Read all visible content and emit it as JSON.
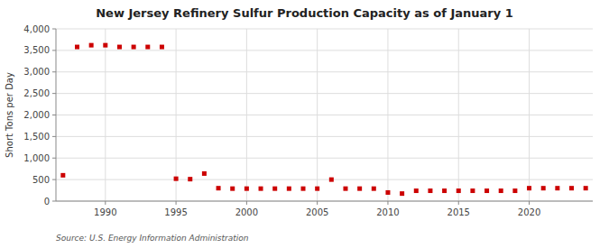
{
  "chart_data": {
    "type": "scatter",
    "title": "New Jersey Refinery Sulfur Production Capacity as of January 1",
    "ylabel": "Short Tons per Day",
    "source": "Source: U.S. Energy Information Administration",
    "color": "#cc0000",
    "marker": "square",
    "grid": true,
    "xlim": [
      1986.5,
      2024.5
    ],
    "xticks": [
      1990,
      1995,
      2000,
      2005,
      2010,
      2015,
      2020
    ],
    "ylim": [
      0,
      4000
    ],
    "yticks": [
      0,
      500,
      {
        "value": 1000,
        "label": "1,000"
      },
      {
        "value": 1500,
        "label": "1,500"
      },
      {
        "value": 2000,
        "label": "2,000"
      },
      {
        "value": 2500,
        "label": "2,500"
      },
      {
        "value": 3000,
        "label": "3,000"
      },
      {
        "value": 3500,
        "label": "3,500"
      },
      {
        "value": 4000,
        "label": "4,000"
      }
    ],
    "x": [
      1987,
      1988,
      1989,
      1990,
      1991,
      1992,
      1993,
      1994,
      1995,
      1996,
      1997,
      1998,
      1999,
      2000,
      2001,
      2002,
      2003,
      2004,
      2005,
      2006,
      2007,
      2008,
      2009,
      2010,
      2011,
      2012,
      2013,
      2014,
      2015,
      2016,
      2017,
      2018,
      2019,
      2020,
      2021,
      2022,
      2023,
      2024
    ],
    "values": [
      600,
      3580,
      3620,
      3620,
      3580,
      3580,
      3580,
      3580,
      520,
      510,
      640,
      300,
      290,
      290,
      290,
      290,
      290,
      290,
      290,
      500,
      290,
      290,
      290,
      200,
      175,
      240,
      240,
      240,
      240,
      240,
      240,
      240,
      240,
      300,
      300,
      300,
      300,
      300
    ]
  }
}
